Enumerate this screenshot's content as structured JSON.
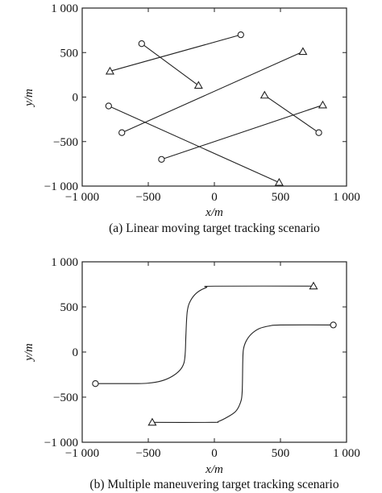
{
  "chart_data": [
    {
      "type": "line",
      "title": "(a) Linear moving target tracking scenario",
      "xlabel": "x/m",
      "ylabel": "y/m",
      "xlim": [
        -1000,
        1000
      ],
      "ylim": [
        -1000,
        1000
      ],
      "xticks": [
        "−1 000",
        "−500",
        "0",
        "500",
        "1 000"
      ],
      "yticks": [
        "−1 000",
        "−500",
        "0",
        "500",
        "1 000"
      ],
      "grid": false,
      "markers": {
        "start": "circle",
        "end": "triangle"
      },
      "series": [
        {
          "x": [
            200,
            -790
          ],
          "y": [
            700,
            290
          ]
        },
        {
          "x": [
            -550,
            -120
          ],
          "y": [
            600,
            130
          ]
        },
        {
          "x": [
            -700,
            670
          ],
          "y": [
            -400,
            510
          ]
        },
        {
          "x": [
            -800,
            490
          ],
          "y": [
            -100,
            -960
          ]
        },
        {
          "x": [
            790,
            380
          ],
          "y": [
            -400,
            20
          ]
        },
        {
          "x": [
            -400,
            820
          ],
          "y": [
            -700,
            -90
          ]
        }
      ]
    },
    {
      "type": "line",
      "title": "(b) Multiple maneuvering target tracking scenario",
      "xlabel": "x/m",
      "ylabel": "y/m",
      "xlim": [
        -1000,
        1000
      ],
      "ylim": [
        -1000,
        1000
      ],
      "xticks": [
        "−1 000",
        "−500",
        "0",
        "500",
        "1 000"
      ],
      "yticks": [
        "−1 000",
        "−500",
        "0",
        "500",
        "1 000"
      ],
      "grid": false,
      "markers": {
        "start": "circle",
        "end": "triangle"
      },
      "series": [
        {
          "x": [
            -900,
            -600,
            -500,
            -400,
            -320,
            -260,
            -230,
            -220,
            -215,
            -205,
            -180,
            -130,
            -60,
            0,
            750
          ],
          "y": [
            -350,
            -350,
            -345,
            -320,
            -270,
            -200,
            -120,
            0,
            200,
            450,
            570,
            660,
            715,
            730,
            730
          ]
        },
        {
          "x": [
            900,
            500,
            420,
            340,
            280,
            240,
            220,
            215,
            210,
            195,
            160,
            100,
            30,
            -20,
            -470
          ],
          "y": [
            300,
            300,
            290,
            260,
            200,
            120,
            30,
            -100,
            -450,
            -570,
            -660,
            -720,
            -770,
            -780,
            -780
          ]
        }
      ]
    }
  ]
}
